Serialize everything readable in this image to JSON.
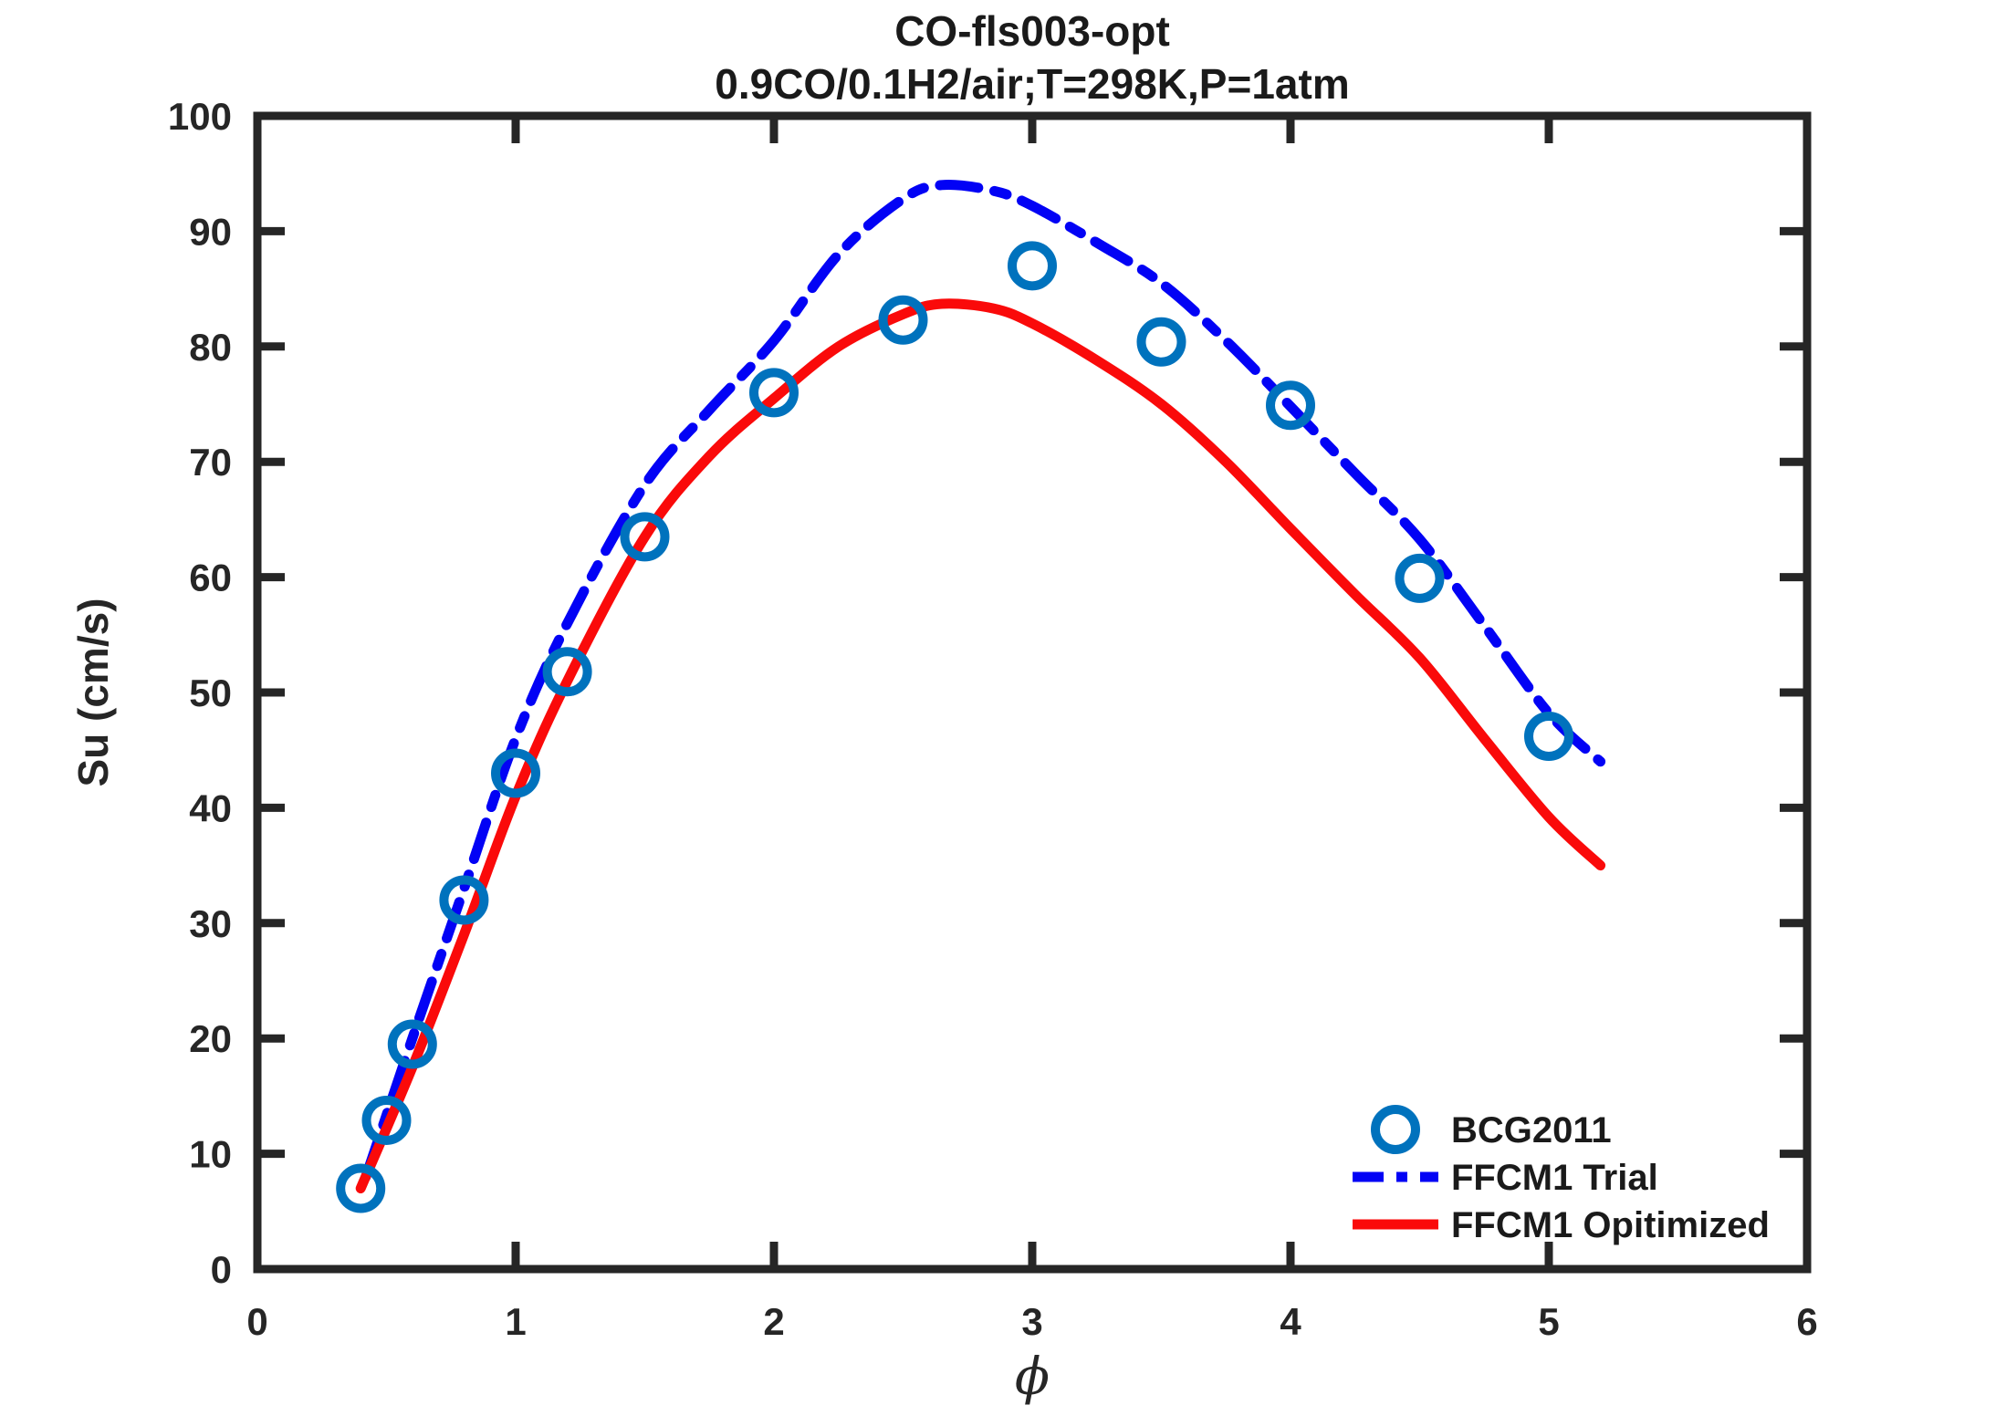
{
  "chart_data": {
    "type": "line",
    "title": "CO-fls003-opt",
    "subtitle": "0.9CO/0.1H2/air;T=298K,P=1atm",
    "xlabel": "ϕ",
    "ylabel": "Su (cm/s)",
    "xlim": [
      0,
      6
    ],
    "ylim": [
      0,
      100
    ],
    "xticks": [
      "0",
      "1",
      "2",
      "3",
      "4",
      "5",
      "6"
    ],
    "yticks": [
      "0",
      "10",
      "20",
      "30",
      "40",
      "50",
      "60",
      "70",
      "80",
      "90",
      "100"
    ],
    "grid": false,
    "axis_color": "#262626",
    "legend_position": "inside-lower-right-no-box",
    "series": [
      {
        "name": "BCG2011",
        "type": "scatter",
        "marker": "circle",
        "color": "#0072BD",
        "points": [
          [
            0.4,
            7
          ],
          [
            0.5,
            12.9
          ],
          [
            0.6,
            19.5
          ],
          [
            0.8,
            32
          ],
          [
            1.0,
            43
          ],
          [
            1.2,
            51.8
          ],
          [
            1.5,
            63.5
          ],
          [
            2.0,
            76
          ],
          [
            2.5,
            82.3
          ],
          [
            3.0,
            87
          ],
          [
            3.5,
            80.4
          ],
          [
            4.0,
            74.9
          ],
          [
            4.5,
            59.9
          ],
          [
            5.0,
            46.2
          ]
        ]
      },
      {
        "name": "FFCM1 Trial",
        "type": "line",
        "style": "dash-dot",
        "color": "#0202F5",
        "points": [
          [
            0.42,
            8
          ],
          [
            0.6,
            20
          ],
          [
            0.8,
            33
          ],
          [
            1.0,
            46
          ],
          [
            1.2,
            56
          ],
          [
            1.5,
            68
          ],
          [
            1.75,
            74.5
          ],
          [
            2.0,
            80.5
          ],
          [
            2.25,
            88
          ],
          [
            2.5,
            92.8
          ],
          [
            2.65,
            94
          ],
          [
            2.85,
            93.5
          ],
          [
            3.0,
            92.2
          ],
          [
            3.25,
            89
          ],
          [
            3.5,
            85.5
          ],
          [
            3.75,
            80.5
          ],
          [
            4.0,
            74.8
          ],
          [
            4.25,
            69
          ],
          [
            4.5,
            63.3
          ],
          [
            4.75,
            55.8
          ],
          [
            5.0,
            48.2
          ],
          [
            5.2,
            44
          ]
        ]
      },
      {
        "name": "FFCM1 Opitimized",
        "type": "line",
        "style": "solid",
        "color": "#FA0A0A",
        "points": [
          [
            0.4,
            7
          ],
          [
            0.6,
            17.5
          ],
          [
            0.8,
            29
          ],
          [
            1.0,
            41
          ],
          [
            1.2,
            51
          ],
          [
            1.5,
            63.5
          ],
          [
            1.75,
            70.5
          ],
          [
            2.0,
            75.5
          ],
          [
            2.25,
            80
          ],
          [
            2.5,
            82.8
          ],
          [
            2.65,
            83.7
          ],
          [
            2.85,
            83.3
          ],
          [
            3.0,
            82
          ],
          [
            3.25,
            78.8
          ],
          [
            3.5,
            75
          ],
          [
            3.75,
            70
          ],
          [
            4.0,
            64.2
          ],
          [
            4.25,
            58.5
          ],
          [
            4.5,
            53
          ],
          [
            4.75,
            46
          ],
          [
            5.0,
            39.2
          ],
          [
            5.2,
            35
          ]
        ]
      }
    ]
  }
}
